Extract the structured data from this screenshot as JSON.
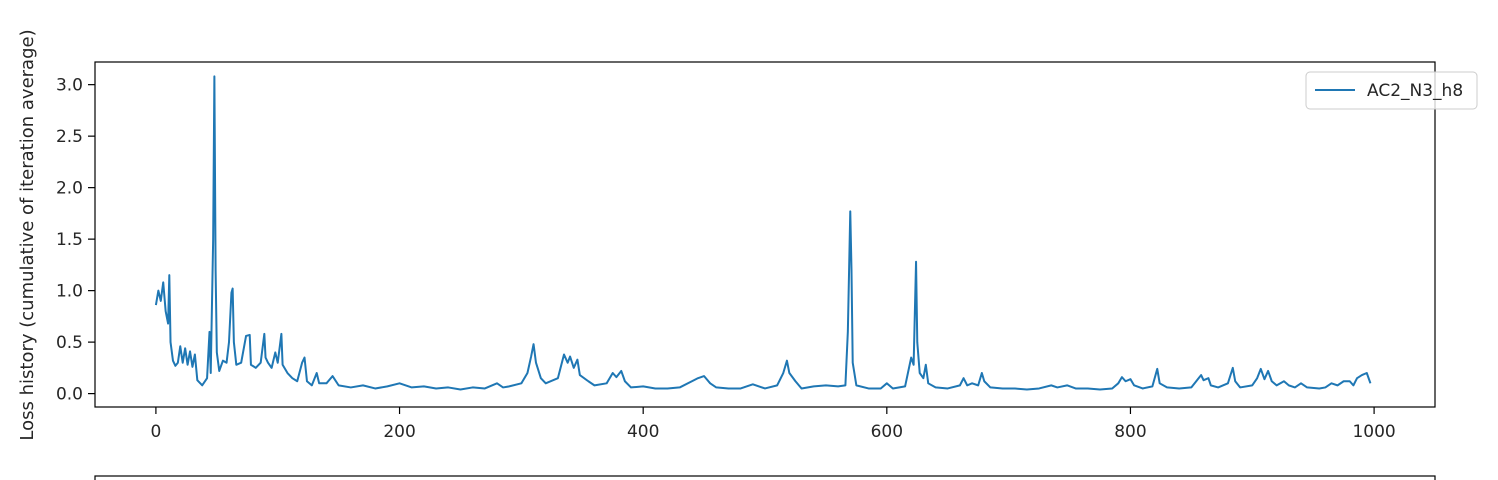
{
  "chart_data": {
    "type": "line",
    "title": "",
    "xlabel": "",
    "ylabel": "Loss history (cumulative of iteration average)",
    "xlim": [
      -50,
      1050
    ],
    "ylim": [
      -0.13,
      3.22
    ],
    "xticks": [
      0,
      200,
      400,
      600,
      800,
      1000
    ],
    "yticks": [
      0.0,
      0.5,
      1.0,
      1.5,
      2.0,
      2.5,
      3.0
    ],
    "xtick_labels": [
      "0",
      "200",
      "400",
      "600",
      "800",
      "1000"
    ],
    "ytick_labels": [
      "0.0",
      "0.5",
      "1.0",
      "1.5",
      "2.0",
      "2.5",
      "3.0"
    ],
    "grid": false,
    "legend_position": "top-right",
    "colors": {
      "series": "#1f77b4",
      "axes": "#000000",
      "background": "#ffffff"
    },
    "series": [
      {
        "name": "AC2_N3_h8",
        "points": [
          [
            0,
            0.86
          ],
          [
            2,
            1.0
          ],
          [
            4,
            0.9
          ],
          [
            6,
            1.08
          ],
          [
            8,
            0.8
          ],
          [
            10,
            0.68
          ],
          [
            11,
            1.15
          ],
          [
            12,
            0.5
          ],
          [
            14,
            0.32
          ],
          [
            16,
            0.27
          ],
          [
            18,
            0.3
          ],
          [
            20,
            0.46
          ],
          [
            22,
            0.3
          ],
          [
            24,
            0.44
          ],
          [
            26,
            0.28
          ],
          [
            28,
            0.41
          ],
          [
            30,
            0.26
          ],
          [
            32,
            0.38
          ],
          [
            34,
            0.13
          ],
          [
            38,
            0.08
          ],
          [
            42,
            0.15
          ],
          [
            44,
            0.6
          ],
          [
            45,
            0.2
          ],
          [
            47,
            1.5
          ],
          [
            48,
            3.08
          ],
          [
            49,
            1.2
          ],
          [
            50,
            0.4
          ],
          [
            52,
            0.22
          ],
          [
            55,
            0.32
          ],
          [
            58,
            0.3
          ],
          [
            60,
            0.5
          ],
          [
            62,
            0.98
          ],
          [
            63,
            1.02
          ],
          [
            64,
            0.5
          ],
          [
            66,
            0.28
          ],
          [
            70,
            0.3
          ],
          [
            74,
            0.56
          ],
          [
            77,
            0.57
          ],
          [
            78,
            0.28
          ],
          [
            82,
            0.25
          ],
          [
            86,
            0.3
          ],
          [
            89,
            0.58
          ],
          [
            90,
            0.35
          ],
          [
            92,
            0.3
          ],
          [
            95,
            0.25
          ],
          [
            98,
            0.4
          ],
          [
            100,
            0.3
          ],
          [
            103,
            0.58
          ],
          [
            104,
            0.28
          ],
          [
            108,
            0.2
          ],
          [
            112,
            0.15
          ],
          [
            116,
            0.12
          ],
          [
            120,
            0.3
          ],
          [
            122,
            0.35
          ],
          [
            124,
            0.12
          ],
          [
            128,
            0.08
          ],
          [
            132,
            0.2
          ],
          [
            134,
            0.1
          ],
          [
            140,
            0.1
          ],
          [
            145,
            0.17
          ],
          [
            150,
            0.08
          ],
          [
            160,
            0.06
          ],
          [
            170,
            0.08
          ],
          [
            180,
            0.05
          ],
          [
            190,
            0.07
          ],
          [
            200,
            0.1
          ],
          [
            210,
            0.06
          ],
          [
            220,
            0.07
          ],
          [
            230,
            0.05
          ],
          [
            240,
            0.06
          ],
          [
            250,
            0.04
          ],
          [
            260,
            0.06
          ],
          [
            270,
            0.05
          ],
          [
            280,
            0.1
          ],
          [
            285,
            0.06
          ],
          [
            290,
            0.07
          ],
          [
            300,
            0.1
          ],
          [
            305,
            0.2
          ],
          [
            308,
            0.36
          ],
          [
            310,
            0.48
          ],
          [
            312,
            0.3
          ],
          [
            316,
            0.15
          ],
          [
            320,
            0.1
          ],
          [
            330,
            0.15
          ],
          [
            335,
            0.38
          ],
          [
            338,
            0.3
          ],
          [
            340,
            0.36
          ],
          [
            343,
            0.25
          ],
          [
            346,
            0.33
          ],
          [
            348,
            0.18
          ],
          [
            355,
            0.12
          ],
          [
            360,
            0.08
          ],
          [
            370,
            0.1
          ],
          [
            375,
            0.2
          ],
          [
            378,
            0.16
          ],
          [
            382,
            0.22
          ],
          [
            385,
            0.12
          ],
          [
            390,
            0.06
          ],
          [
            400,
            0.07
          ],
          [
            410,
            0.05
          ],
          [
            420,
            0.05
          ],
          [
            430,
            0.06
          ],
          [
            440,
            0.12
          ],
          [
            445,
            0.15
          ],
          [
            450,
            0.17
          ],
          [
            455,
            0.1
          ],
          [
            460,
            0.06
          ],
          [
            470,
            0.05
          ],
          [
            480,
            0.05
          ],
          [
            490,
            0.09
          ],
          [
            500,
            0.05
          ],
          [
            510,
            0.08
          ],
          [
            515,
            0.2
          ],
          [
            518,
            0.32
          ],
          [
            520,
            0.2
          ],
          [
            525,
            0.12
          ],
          [
            530,
            0.05
          ],
          [
            540,
            0.07
          ],
          [
            550,
            0.08
          ],
          [
            560,
            0.07
          ],
          [
            566,
            0.08
          ],
          [
            568,
            0.6
          ],
          [
            570,
            1.77
          ],
          [
            571,
            1.2
          ],
          [
            572,
            0.3
          ],
          [
            575,
            0.08
          ],
          [
            585,
            0.05
          ],
          [
            595,
            0.05
          ],
          [
            600,
            0.1
          ],
          [
            605,
            0.05
          ],
          [
            615,
            0.07
          ],
          [
            620,
            0.35
          ],
          [
            622,
            0.28
          ],
          [
            624,
            1.28
          ],
          [
            625,
            0.5
          ],
          [
            627,
            0.2
          ],
          [
            630,
            0.15
          ],
          [
            632,
            0.28
          ],
          [
            634,
            0.1
          ],
          [
            640,
            0.06
          ],
          [
            650,
            0.05
          ],
          [
            660,
            0.08
          ],
          [
            663,
            0.15
          ],
          [
            666,
            0.08
          ],
          [
            670,
            0.1
          ],
          [
            675,
            0.08
          ],
          [
            678,
            0.2
          ],
          [
            680,
            0.12
          ],
          [
            685,
            0.06
          ],
          [
            695,
            0.05
          ],
          [
            705,
            0.05
          ],
          [
            715,
            0.04
          ],
          [
            725,
            0.05
          ],
          [
            735,
            0.08
          ],
          [
            740,
            0.06
          ],
          [
            748,
            0.08
          ],
          [
            755,
            0.05
          ],
          [
            765,
            0.05
          ],
          [
            775,
            0.04
          ],
          [
            785,
            0.05
          ],
          [
            790,
            0.1
          ],
          [
            793,
            0.16
          ],
          [
            796,
            0.12
          ],
          [
            800,
            0.14
          ],
          [
            803,
            0.08
          ],
          [
            810,
            0.05
          ],
          [
            818,
            0.07
          ],
          [
            822,
            0.24
          ],
          [
            824,
            0.1
          ],
          [
            830,
            0.06
          ],
          [
            840,
            0.05
          ],
          [
            850,
            0.06
          ],
          [
            856,
            0.15
          ],
          [
            858,
            0.18
          ],
          [
            860,
            0.13
          ],
          [
            864,
            0.15
          ],
          [
            866,
            0.08
          ],
          [
            872,
            0.06
          ],
          [
            880,
            0.1
          ],
          [
            884,
            0.25
          ],
          [
            886,
            0.12
          ],
          [
            890,
            0.06
          ],
          [
            900,
            0.08
          ],
          [
            904,
            0.15
          ],
          [
            907,
            0.24
          ],
          [
            910,
            0.14
          ],
          [
            913,
            0.22
          ],
          [
            916,
            0.12
          ],
          [
            920,
            0.08
          ],
          [
            926,
            0.12
          ],
          [
            930,
            0.08
          ],
          [
            935,
            0.06
          ],
          [
            940,
            0.1
          ],
          [
            945,
            0.06
          ],
          [
            955,
            0.05
          ],
          [
            960,
            0.06
          ],
          [
            965,
            0.1
          ],
          [
            970,
            0.08
          ],
          [
            975,
            0.12
          ],
          [
            980,
            0.12
          ],
          [
            983,
            0.08
          ],
          [
            986,
            0.15
          ],
          [
            990,
            0.18
          ],
          [
            994,
            0.2
          ],
          [
            997,
            0.1
          ]
        ]
      }
    ]
  }
}
